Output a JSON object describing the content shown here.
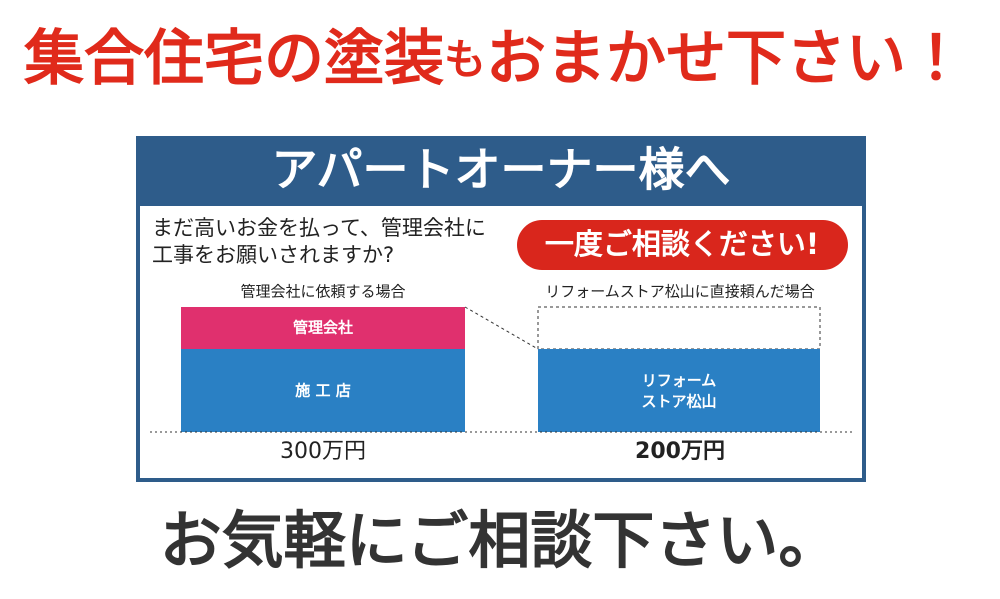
{
  "header": {
    "title_parts": [
      "集合住宅の塗装",
      "も",
      "おまかせ下さい！"
    ]
  },
  "panel": {
    "heading": "アパートオーナー様へ",
    "question": [
      "まだ高いお金を払って、管理会社に",
      "工事をお願いされますか?"
    ],
    "badge": "一度ご相談ください!",
    "left": {
      "caption": "管理会社に依頼する場合",
      "segments": [
        "管理会社",
        "施 工 店"
      ],
      "total": "300万円"
    },
    "right": {
      "caption": "リフォームストア松山に直接頼んだ場合",
      "segments": [
        "リフォーム",
        "ストア松山"
      ],
      "total": "200万円"
    }
  },
  "footer": {
    "text": "お気軽にご相談下さい。"
  }
}
